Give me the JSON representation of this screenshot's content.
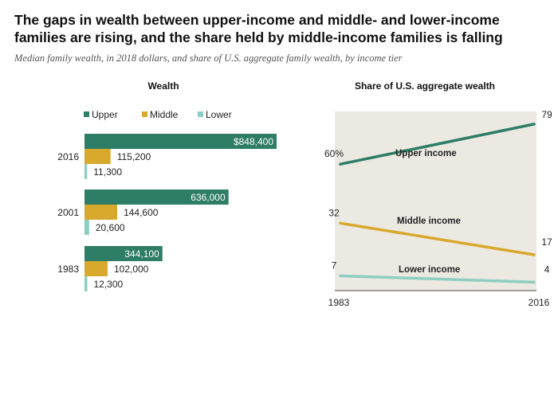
{
  "header": {
    "title": "The gaps in wealth between upper-income and middle- and lower-income families are rising, and the share held by middle-income families is falling",
    "subtitle": "Median family wealth, in 2018 dollars, and share of U.S. aggregate family wealth, by income tier"
  },
  "colors": {
    "upper": "#2e7d66",
    "middle": "#d8a92d",
    "lower": "#8ccfc0",
    "panel_bg": "#ece9e3"
  },
  "chart_data": [
    {
      "type": "bar",
      "title": "Wealth",
      "orientation": "horizontal",
      "legend": [
        "Upper",
        "Middle",
        "Lower"
      ],
      "legend_position": "top",
      "categories": [
        "2016",
        "2001",
        "1983"
      ],
      "series": [
        {
          "name": "Upper",
          "values": [
            848400,
            636000,
            344100
          ],
          "labels": [
            "$848,400",
            "636,000",
            "344,100"
          ]
        },
        {
          "name": "Middle",
          "values": [
            115200,
            144600,
            102000
          ],
          "labels": [
            "115,200",
            "144,600",
            "102,000"
          ]
        },
        {
          "name": "Lower",
          "values": [
            11300,
            20600,
            12300
          ],
          "labels": [
            "11,300",
            "20,600",
            "12,300"
          ]
        }
      ],
      "xlim": [
        0,
        848400
      ]
    },
    {
      "type": "line",
      "title": "Share of U.S. aggregate wealth",
      "x": [
        "1983",
        "2016"
      ],
      "series": [
        {
          "name": "Upper income",
          "values": [
            60,
            79
          ],
          "labels": [
            "60%",
            "79"
          ]
        },
        {
          "name": "Middle income",
          "values": [
            32,
            17
          ],
          "labels": [
            "32",
            "17"
          ]
        },
        {
          "name": "Lower income",
          "values": [
            7,
            4
          ],
          "labels": [
            "7",
            "4"
          ]
        }
      ],
      "ylim": [
        0,
        85
      ]
    }
  ]
}
